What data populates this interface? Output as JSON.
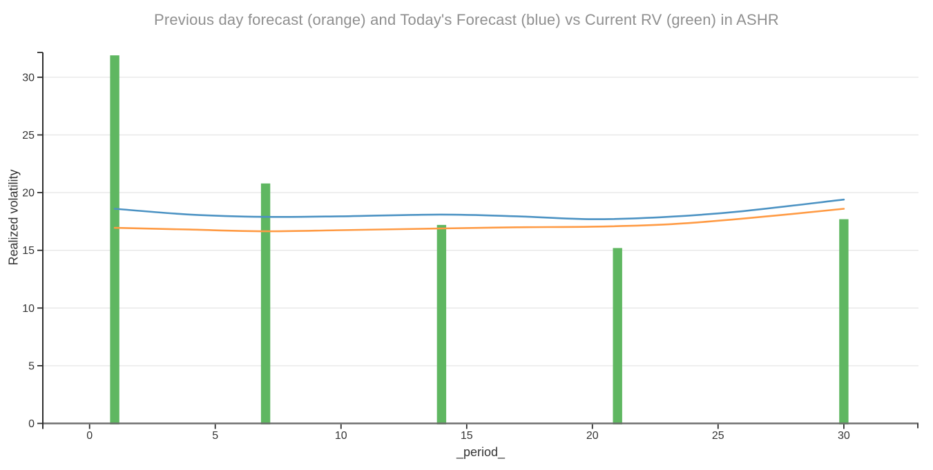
{
  "chart_data": {
    "type": "bar+line",
    "title": "Previous day forecast (orange) and Today's Forecast (blue) vs Current RV (green) in ASHR",
    "xlabel": "_period_",
    "ylabel": "Realized volatility",
    "xlim": [
      -1.86,
      32.97
    ],
    "ylim": [
      0,
      32.15
    ],
    "xticks": [
      0,
      5,
      10,
      15,
      20,
      25,
      30
    ],
    "yticks": [
      0,
      5,
      10,
      15,
      20,
      25,
      30
    ],
    "grid": "horizontal-only",
    "legend_position": "none",
    "colors": {
      "grid": "#e7e7e7",
      "x_axis_line": "#6e6e6e",
      "y_axis_line": "#2d2d2d",
      "tick": "#2d2d2d",
      "tick_label": "#333333",
      "title": "#8f8f8f"
    },
    "bars": {
      "name": "Current RV",
      "color": "#5fb761",
      "x": [
        1,
        7,
        14,
        21,
        30
      ],
      "values": [
        31.9,
        20.8,
        17.2,
        15.2,
        17.7
      ]
    },
    "series": [
      {
        "id": "previous-day-forecast",
        "name": "Previous day forecast",
        "color": "#ff9a43",
        "x": [
          1,
          4,
          7,
          10,
          14,
          17,
          20,
          23,
          26,
          30
        ],
        "y": [
          16.95,
          16.8,
          16.65,
          16.75,
          16.9,
          17.0,
          17.05,
          17.25,
          17.75,
          18.6
        ]
      },
      {
        "id": "todays-forecast",
        "name": "Today's Forecast",
        "color": "#4b92c3",
        "x": [
          1,
          4,
          7,
          10,
          14,
          17,
          20,
          23,
          26,
          30
        ],
        "y": [
          18.6,
          18.1,
          17.9,
          17.95,
          18.1,
          17.95,
          17.7,
          17.9,
          18.4,
          19.4
        ]
      }
    ]
  }
}
